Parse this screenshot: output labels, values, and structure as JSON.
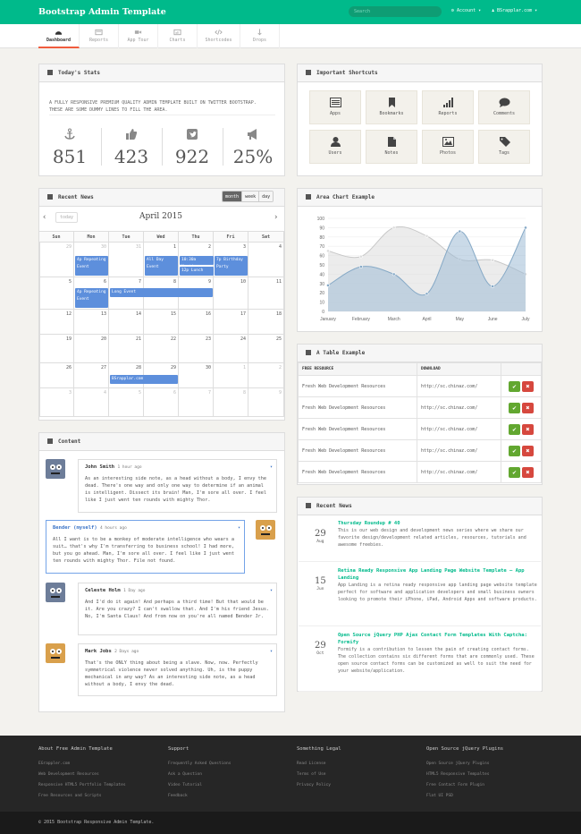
{
  "app": {
    "brand": "Bootstrap Admin Template",
    "search_placeholder": "Search",
    "account": "Account",
    "user": "BSrapplar.com"
  },
  "nav": [
    {
      "label": "Dashboard",
      "icon": "dashboard-icon"
    },
    {
      "label": "Reports",
      "icon": "reports-icon"
    },
    {
      "label": "App Tour",
      "icon": "video-icon"
    },
    {
      "label": "Charts",
      "icon": "chart-icon"
    },
    {
      "label": "Shortcodes",
      "icon": "code-icon"
    },
    {
      "label": "Drops",
      "icon": "drop-icon"
    }
  ],
  "stats": {
    "title": "Today's Stats",
    "lead": "A FULLY RESPONSIVE PREMIUM QUALITY ADMIN TEMPLATE BUILT ON TWITTER BOOTSTRAP. THESE ARE SOME DUMMY LINES TO FILL THE AREA.",
    "items": [
      {
        "icon": "anchor-icon",
        "value": "851"
      },
      {
        "icon": "thumbs-up-icon",
        "value": "423"
      },
      {
        "icon": "twitter-icon",
        "value": "922"
      },
      {
        "icon": "bullhorn-icon",
        "value": "25%"
      }
    ]
  },
  "shortcuts": {
    "title": "Important Shortcuts",
    "items": [
      {
        "label": "Apps",
        "icon": "apps-icon"
      },
      {
        "label": "Bookmarks",
        "icon": "bookmark-icon"
      },
      {
        "label": "Reports",
        "icon": "signal-icon"
      },
      {
        "label": "Comments",
        "icon": "comment-icon"
      },
      {
        "label": "Users",
        "icon": "user-icon"
      },
      {
        "label": "Notes",
        "icon": "file-icon"
      },
      {
        "label": "Photos",
        "icon": "picture-icon"
      },
      {
        "label": "Tags",
        "icon": "tag-icon"
      }
    ]
  },
  "calendar": {
    "title": "Recent News",
    "views": [
      "month",
      "week",
      "day"
    ],
    "today": "today",
    "month": "April 2015",
    "days": [
      "Sun",
      "Mon",
      "Tue",
      "Wed",
      "Thu",
      "Fri",
      "Sat"
    ],
    "weeks": [
      [
        "29",
        "30",
        "31",
        "1",
        "2",
        "3",
        "4"
      ],
      [
        "5",
        "6",
        "7",
        "8",
        "9",
        "10",
        "11"
      ],
      [
        "12",
        "13",
        "14",
        "15",
        "16",
        "17",
        "18"
      ],
      [
        "19",
        "20",
        "21",
        "22",
        "23",
        "24",
        "25"
      ],
      [
        "26",
        "27",
        "28",
        "29",
        "30",
        "1",
        "2"
      ],
      [
        "3",
        "4",
        "5",
        "6",
        "7",
        "8",
        "9"
      ]
    ],
    "events": [
      "4p Repeating Event",
      "All Day Event",
      "10:30a Meeting",
      "7p Birthday Party",
      "12p Lunch",
      "4p Repeating Event",
      "Long Event",
      "BSrapplar.com"
    ]
  },
  "chart": {
    "title": "Area Chart Example",
    "chart_data": {
      "type": "area",
      "categories": [
        "January",
        "February",
        "March",
        "April",
        "May",
        "June",
        "July"
      ],
      "series": [
        {
          "values": [
            65,
            59,
            90,
            81,
            56,
            55,
            40
          ],
          "color": "#dcdcdc"
        },
        {
          "values": [
            28,
            48,
            40,
            19,
            86,
            27,
            90
          ],
          "color": "#9ebcd6"
        }
      ],
      "ylim": [
        0,
        100
      ],
      "yticks": [
        "0",
        "10",
        "20",
        "30",
        "40",
        "50",
        "60",
        "70",
        "80",
        "90",
        "100"
      ]
    }
  },
  "table": {
    "title": "A Table Example",
    "headers": [
      "FREE RESOURCE",
      "DOWNLOAD"
    ],
    "rows": [
      [
        "Fresh Web Development Resources",
        "http://sc.chinaz.com/"
      ],
      [
        "Fresh Web Development Resources",
        "http://sc.chinaz.com/"
      ],
      [
        "Fresh Web Development Resources",
        "http://sc.chinaz.com/"
      ],
      [
        "Fresh Web Development Resources",
        "http://sc.chinaz.com/"
      ],
      [
        "Fresh Web Development Resources",
        "http://sc.chinaz.com/"
      ]
    ]
  },
  "news": {
    "title": "Recent News",
    "items": [
      {
        "day": "29",
        "mon": "Aug",
        "title": "Thursday Roundup # 40",
        "body": "This is our web design and development news series where we share our favorite design/development related articles, resources, tutorials and awesome freebies."
      },
      {
        "day": "15",
        "mon": "Jun",
        "title": "Retina Ready Responsive App Landing Page Website Template – App Landing",
        "body": "App Landing is a retina ready responsive app landing page website template perfect for software and application developers and small business owners looking to promote their iPhone, iPad, Android Apps and software products."
      },
      {
        "day": "29",
        "mon": "Oct",
        "title": "Open Source jQuery PHP Ajax Contact Form Templates With Captcha: Formify",
        "body": "Formify is a contribution to lessen the pain of creating contact forms. The collection contains six different forms that are commonly used. These open source contact forms can be customized as well to suit the need for your website/application."
      }
    ]
  },
  "content": {
    "title": "Content",
    "comments": [
      {
        "name": "John Smith",
        "time": "1 hour ago",
        "text": "As an interesting side note, as a head without a body, I envy the dead. There's one way and only one way to determine if an animal is intelligent. Dissect its brain! Man, I'm sore all over. I feel like I just went ten rounds with mighty Thor."
      },
      {
        "name": "Bender (myself)",
        "time": "4 hours ago",
        "text": "All I want is to be a monkey of moderate intelligence who wears a suit… that's why I'm transferring to business school! I had more, but you go ahead. Man, I'm sore all over. I feel like I just went ten rounds with mighty Thor. File not found."
      },
      {
        "name": "Celeste Holm",
        "time": "1 Day ago",
        "text": "And I'd do it again! And perhaps a third time! But that would be it. Are you crazy? I can't swallow that. And I'm his friend Jesus. No, I'm Santa Claus! And from now on you're all named Bender Jr."
      },
      {
        "name": "Mark Jobs",
        "time": "2 Days ago",
        "text": "That's the ONLY thing about being a slave. Now, now. Perfectly symmetrical violence never solved anything. Uh, is the puppy mechanical in any way? As an interesting side note, as a head without a body, I envy the dead."
      }
    ]
  },
  "footer": {
    "cols": [
      {
        "title": "About Free Admin Template",
        "links": [
          "EGrappler.com",
          "Web Development Resources",
          "Responsive HTML5 Portfolio Templates",
          "Free Resources and Scripts"
        ]
      },
      {
        "title": "Support",
        "links": [
          "Frequently Asked Questions",
          "Ask a Question",
          "Video Tutorial",
          "Feedback"
        ]
      },
      {
        "title": "Something Legal",
        "links": [
          "Read License",
          "Terms of Use",
          "Privacy Policy"
        ]
      },
      {
        "title": "Open Source jQuery Plugins",
        "links": [
          "Open Source jQuery Plugins",
          "HTML5 Responsive Tempaltes",
          "Free Contact Form Plugin",
          "Flat UI PSD"
        ]
      }
    ],
    "copyright": "© 2015 Bootstrap Responsive Admin Template."
  },
  "colors": {
    "accent": "#00ba8b",
    "event": "#5d8fdc",
    "ok": "#62a730",
    "no": "#d6483e"
  }
}
